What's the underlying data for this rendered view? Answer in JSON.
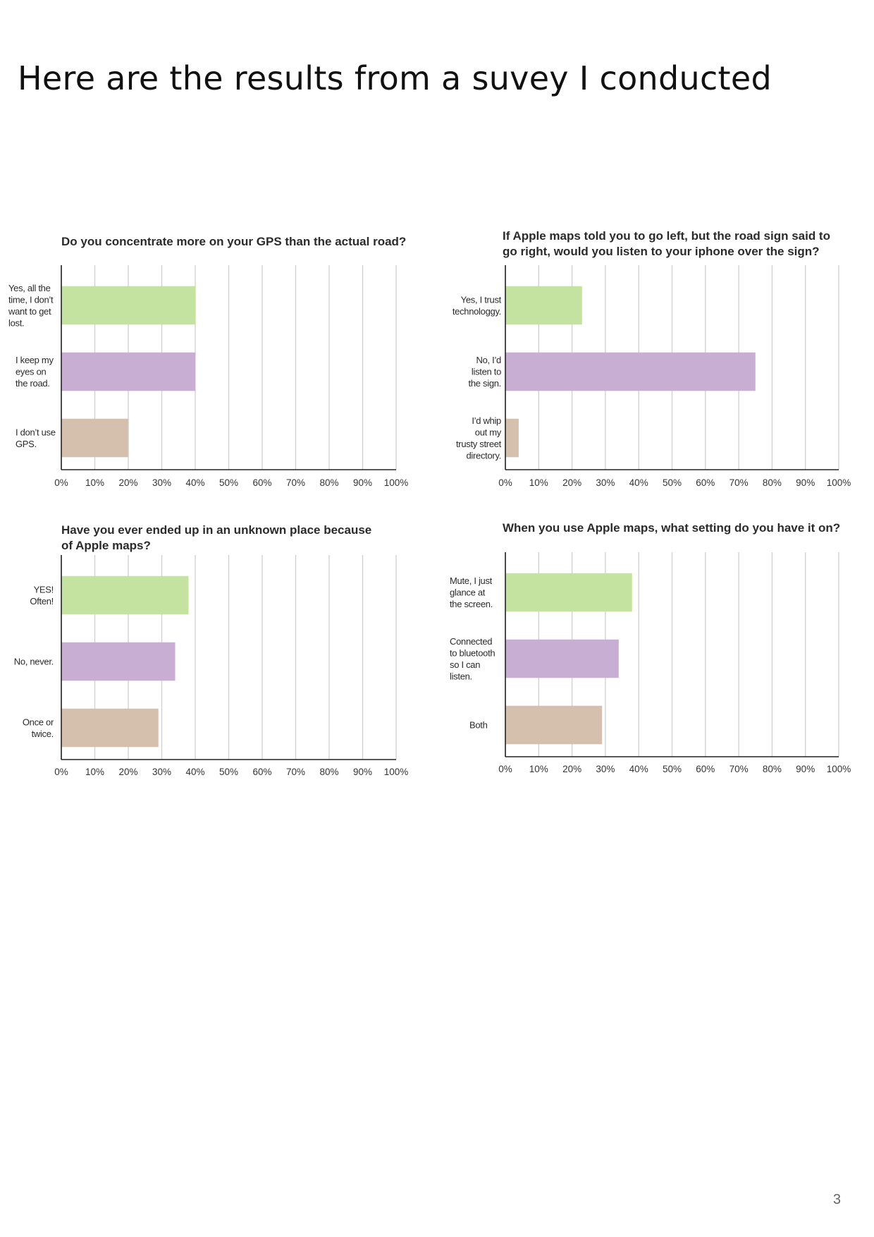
{
  "page": {
    "title": "Here are the results from a suvey I conducted",
    "page_number": "3"
  },
  "chart_data": [
    {
      "type": "bar",
      "orientation": "horizontal",
      "title": "Do you concentrate more on your GPS than the actual road?",
      "categories": [
        [
          "Yes, all the",
          "time, I don’t",
          "want to get",
          "lost."
        ],
        [
          "I keep my",
          "eyes on",
          "the road."
        ],
        [
          "I don’t use",
          "GPS."
        ]
      ],
      "values": [
        40,
        40,
        20
      ],
      "xlim": [
        0,
        100
      ],
      "ticks": [
        "0%",
        "10%",
        "20%",
        "30%",
        "40%",
        "50%",
        "60%",
        "70%",
        "80%",
        "90%",
        "100%"
      ],
      "colors": [
        "#c5e3a0",
        "#c9aed4",
        "#d5bfad"
      ],
      "grid": true
    },
    {
      "type": "bar",
      "orientation": "horizontal",
      "title": [
        "If Apple maps told you to go left, but the road sign said to",
        "go right, would you listen to your iphone over the sign?"
      ],
      "categories": [
        [
          "Yes, I trust",
          "technologgy."
        ],
        [
          "No, I’d",
          "listen to",
          "the sign."
        ],
        [
          "I’d whip",
          "out my",
          "trusty street",
          "directory."
        ]
      ],
      "values": [
        23,
        75,
        4
      ],
      "xlim": [
        0,
        100
      ],
      "ticks": [
        "0%",
        "10%",
        "20%",
        "30%",
        "40%",
        "50%",
        "60%",
        "70%",
        "80%",
        "90%",
        "100%"
      ],
      "colors": [
        "#c5e3a0",
        "#c9aed4",
        "#d5bfad"
      ],
      "grid": true
    },
    {
      "type": "bar",
      "orientation": "horizontal",
      "title": [
        "Have you ever ended up in an unknown place because",
        "of Apple maps?"
      ],
      "categories": [
        [
          "YES!",
          "Often!"
        ],
        [
          "No, never."
        ],
        [
          "Once or",
          "twice."
        ]
      ],
      "values": [
        38,
        34,
        29
      ],
      "xlim": [
        0,
        100
      ],
      "ticks": [
        "0%",
        "10%",
        "20%",
        "30%",
        "40%",
        "50%",
        "60%",
        "70%",
        "80%",
        "90%",
        "100%"
      ],
      "colors": [
        "#c5e3a0",
        "#c9aed4",
        "#d5bfad"
      ],
      "grid": true
    },
    {
      "type": "bar",
      "orientation": "horizontal",
      "title": "When you use Apple maps, what setting do you have it on?",
      "categories": [
        [
          "Mute, I just",
          "glance at",
          "the screen."
        ],
        [
          "Connected",
          "to bluetooth",
          "so I can",
          "listen."
        ],
        [
          "Both"
        ]
      ],
      "values": [
        38,
        34,
        29
      ],
      "xlim": [
        0,
        100
      ],
      "ticks": [
        "0%",
        "10%",
        "20%",
        "30%",
        "40%",
        "50%",
        "60%",
        "70%",
        "80%",
        "90%",
        "100%"
      ],
      "colors": [
        "#c5e3a0",
        "#c9aed4",
        "#d5bfad"
      ],
      "grid": true
    }
  ]
}
